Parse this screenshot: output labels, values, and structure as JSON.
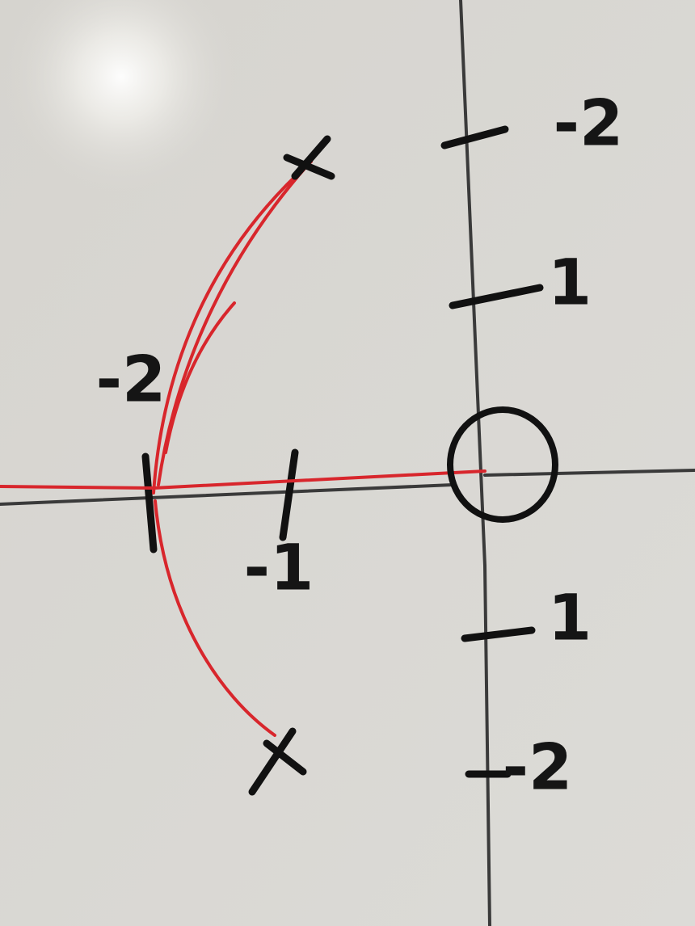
{
  "whiteboard": {
    "labels": [
      "-2",
      "1",
      "-2",
      "-1",
      "1",
      "-2"
    ]
  }
}
